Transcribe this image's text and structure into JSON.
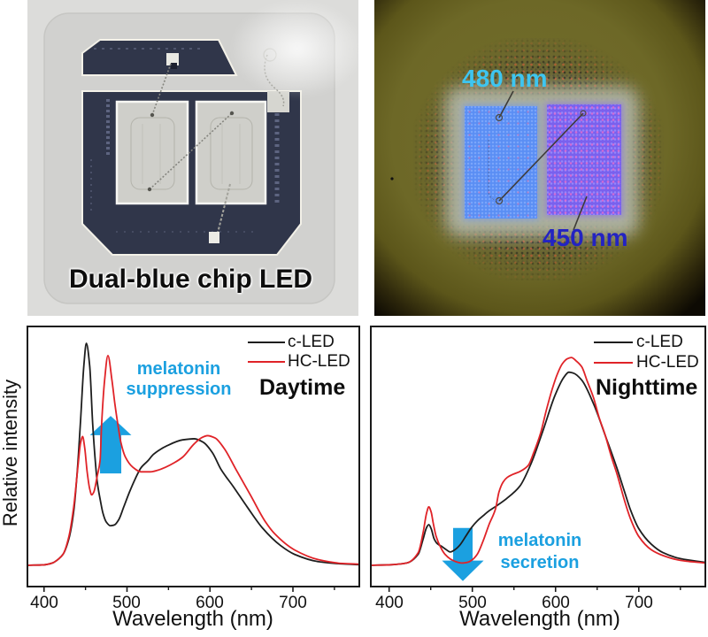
{
  "photos": {
    "left": {
      "caption": "Dual-blue chip LED"
    },
    "right": {
      "label_480": "480 nm",
      "label_450": "450 nm"
    }
  },
  "colors": {
    "c_led": "#1e1e1e",
    "hc_led": "#e02328",
    "annotation": "#1ba0e0",
    "label_480": "#3ec5f0",
    "label_450": "#2323c2"
  },
  "chart_data": [
    {
      "type": "line",
      "title": "Daytime",
      "xlabel": "Wavelength (nm)",
      "ylabel": "Relative intensity",
      "xlim": [
        380,
        780
      ],
      "ylim": [
        -0.096,
        1.076
      ],
      "xticks": [
        400,
        500,
        600,
        700
      ],
      "xtick_labels": [
        "400",
        "500",
        "600",
        "700"
      ],
      "minor_xticks": [
        450,
        550,
        650,
        750
      ],
      "yticks": [],
      "grid": false,
      "legend": {
        "position": "upper right",
        "entries": [
          "c-LED",
          "HC-LED"
        ]
      },
      "annotation": {
        "lines": [
          "melatonin",
          "suppression"
        ],
        "arrow": {
          "direction": "up",
          "x": 480.3,
          "shaft_half_width": 12.8,
          "head_half_width": 25,
          "y_tail": 0.414,
          "y_head_base": 0.586,
          "y_tip": 0.673
        }
      },
      "series": [
        {
          "name": "c-LED",
          "color": "#1e1e1e",
          "x": [
            380,
            400,
            410,
            418,
            423,
            430,
            436,
            440,
            444,
            448,
            451,
            455,
            458.7,
            462,
            464,
            468,
            471,
            475,
            480,
            485,
            490,
            496,
            503,
            510,
            517,
            525,
            532,
            549,
            567,
            581,
            592,
            603,
            613,
            628,
            645,
            663,
            685,
            702,
            731,
            760,
            780
          ],
          "y": [
            0,
            0.002,
            0.01,
            0.03,
            0.05,
            0.12,
            0.25,
            0.42,
            0.65,
            0.9,
            1.0,
            0.9,
            0.634,
            0.46,
            0.38,
            0.29,
            0.235,
            0.195,
            0.178,
            0.182,
            0.205,
            0.262,
            0.33,
            0.39,
            0.44,
            0.47,
            0.5,
            0.54,
            0.565,
            0.57,
            0.554,
            0.507,
            0.434,
            0.355,
            0.262,
            0.169,
            0.089,
            0.049,
            0.016,
            0.006,
            0.003
          ]
        },
        {
          "name": "HC-LED",
          "color": "#e02328",
          "x": [
            380,
            400,
            410,
            418,
            423,
            430,
            436,
            441,
            444,
            446.5,
            449,
            452,
            455,
            457.5,
            460,
            464,
            467.6,
            469.4,
            473,
            477,
            481.9,
            485.4,
            489,
            492.6,
            498,
            507,
            517,
            528,
            537,
            546,
            557,
            567,
            581,
            590,
            597,
            606,
            617,
            631,
            649,
            667,
            678,
            702,
            731,
            760,
            780
          ],
          "y": [
            0,
            0.002,
            0.01,
            0.03,
            0.05,
            0.13,
            0.27,
            0.45,
            0.55,
            0.58,
            0.53,
            0.42,
            0.345,
            0.317,
            0.33,
            0.4,
            0.474,
            0.634,
            0.833,
            0.945,
            0.833,
            0.727,
            0.634,
            0.554,
            0.488,
            0.442,
            0.421,
            0.421,
            0.428,
            0.441,
            0.462,
            0.487,
            0.547,
            0.575,
            0.584,
            0.574,
            0.527,
            0.434,
            0.315,
            0.195,
            0.142,
            0.069,
            0.025,
            0.008,
            0.005
          ]
        }
      ]
    },
    {
      "type": "line",
      "title": "Nighttime",
      "xlabel": "Wavelength (nm)",
      "ylabel": "",
      "xlim": [
        378,
        780
      ],
      "ylim": [
        -0.096,
        1.076
      ],
      "xticks": [
        400,
        500,
        600,
        700
      ],
      "xtick_labels": [
        "400",
        "500",
        "600",
        "700"
      ],
      "minor_xticks": [
        450,
        550,
        650,
        750
      ],
      "yticks": [],
      "grid": false,
      "legend": {
        "position": "upper right",
        "entries": [
          "c-LED",
          "HC-LED"
        ]
      },
      "annotation": {
        "lines": [
          "melatonin",
          "secretion"
        ],
        "arrow": {
          "direction": "down",
          "x": 488.6,
          "shaft_half_width": 11.7,
          "head_half_width": 25,
          "y_tail": 0.168,
          "y_head_base": 0.021,
          "y_tip": -0.071
        }
      },
      "series": [
        {
          "name": "c-LED",
          "color": "#1e1e1e",
          "x": [
            378,
            400,
            421,
            435,
            441,
            445,
            447.7,
            450.5,
            454,
            458,
            463.6,
            468,
            473.5,
            479,
            484.8,
            492,
            499,
            506,
            513,
            520,
            528,
            541,
            557,
            571,
            585,
            599.5,
            610,
            616,
            622,
            631.5,
            645.7,
            660,
            674,
            683,
            690,
            700,
            715,
            729,
            750,
            780
          ],
          "y": [
            0,
            0.002,
            0.01,
            0.05,
            0.12,
            0.17,
            0.183,
            0.165,
            0.12,
            0.097,
            0.084,
            0.072,
            0.06,
            0.07,
            0.09,
            0.13,
            0.17,
            0.2,
            0.223,
            0.245,
            0.265,
            0.3,
            0.356,
            0.462,
            0.608,
            0.767,
            0.847,
            0.87,
            0.865,
            0.834,
            0.727,
            0.582,
            0.435,
            0.33,
            0.25,
            0.165,
            0.095,
            0.057,
            0.03,
            0.013
          ]
        },
        {
          "name": "HC-LED",
          "color": "#e02328",
          "x": [
            378,
            400,
            421,
            435,
            441,
            445,
            447.7,
            450.5,
            453,
            456.5,
            462,
            467,
            475,
            482,
            488,
            495,
            500,
            506,
            513,
            520,
            528,
            532,
            537,
            542,
            549,
            557,
            567,
            574,
            582,
            589,
            596,
            602,
            608,
            614,
            619,
            625,
            631.5,
            638,
            645.7,
            652,
            660,
            667,
            674,
            683,
            690,
            700,
            715,
            729,
            750,
            780
          ],
          "y": [
            0,
            0.002,
            0.01,
            0.057,
            0.15,
            0.235,
            0.263,
            0.24,
            0.19,
            0.13,
            0.08,
            0.05,
            0.025,
            0.014,
            0.01,
            0.014,
            0.025,
            0.05,
            0.11,
            0.183,
            0.256,
            0.33,
            0.375,
            0.396,
            0.41,
            0.422,
            0.449,
            0.51,
            0.595,
            0.7,
            0.794,
            0.86,
            0.907,
            0.93,
            0.936,
            0.92,
            0.894,
            0.83,
            0.754,
            0.67,
            0.582,
            0.49,
            0.409,
            0.29,
            0.21,
            0.13,
            0.07,
            0.044,
            0.022,
            0.01
          ]
        }
      ]
    }
  ]
}
